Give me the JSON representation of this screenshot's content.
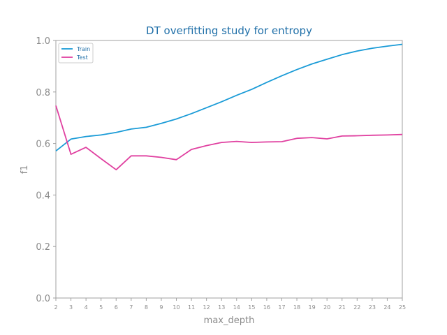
{
  "chart_data": {
    "type": "line",
    "title": "DT overfitting study for entropy",
    "xlabel": "max_depth",
    "ylabel": "f1",
    "x": [
      2,
      3,
      4,
      5,
      6,
      7,
      8,
      9,
      10,
      11,
      12,
      13,
      14,
      15,
      16,
      17,
      18,
      19,
      20,
      21,
      22,
      23,
      24,
      25
    ],
    "xlim": [
      2,
      25
    ],
    "ylim": [
      0.0,
      1.0
    ],
    "yticks": [
      "0.0",
      "0.2",
      "0.4",
      "0.6",
      "0.8",
      "1.0"
    ],
    "grid": false,
    "legend_position": "top-left",
    "series": [
      {
        "name": "Train",
        "color": "#1a9bd7",
        "values": [
          0.571,
          0.617,
          0.627,
          0.633,
          0.643,
          0.656,
          0.663,
          0.678,
          0.695,
          0.716,
          0.739,
          0.762,
          0.787,
          0.81,
          0.837,
          0.863,
          0.887,
          0.909,
          0.927,
          0.945,
          0.959,
          0.97,
          0.978,
          0.985
        ]
      },
      {
        "name": "Test",
        "color": "#e040a0",
        "values": [
          0.747,
          0.558,
          0.585,
          0.541,
          0.498,
          0.552,
          0.552,
          0.546,
          0.537,
          0.577,
          0.592,
          0.604,
          0.608,
          0.604,
          0.606,
          0.607,
          0.62,
          0.623,
          0.618,
          0.629,
          0.63,
          0.632,
          0.633,
          0.635
        ]
      }
    ]
  }
}
